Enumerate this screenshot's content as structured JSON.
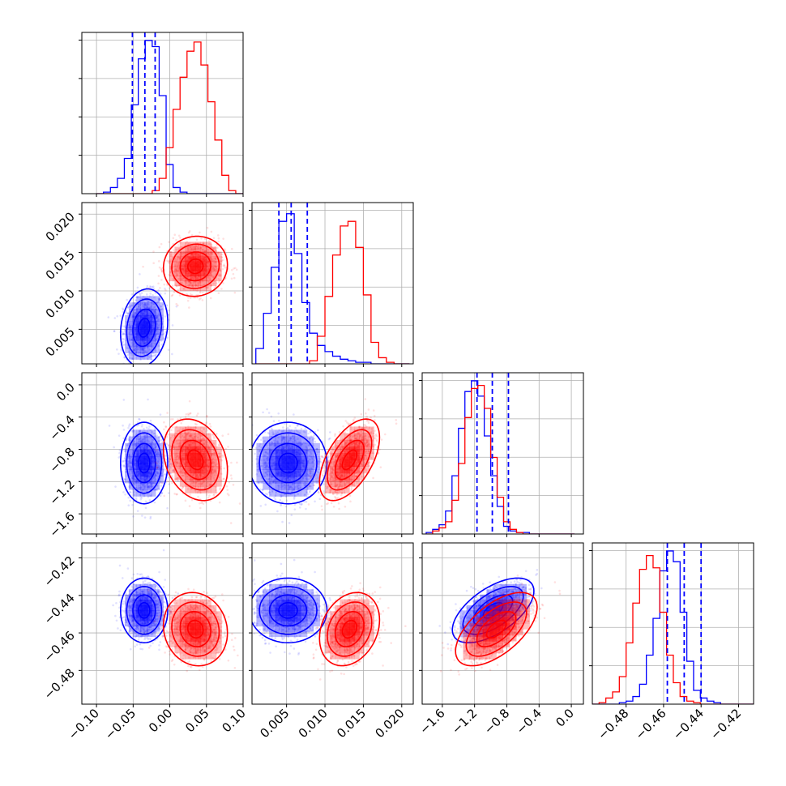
{
  "chart_data": {
    "type": "corner",
    "grid": true,
    "series": [
      {
        "color": "#0000ff"
      },
      {
        "color": "#ff0000"
      }
    ],
    "params": [
      {
        "range": [
          -0.12,
          0.1
        ],
        "ticks": [
          -0.1,
          -0.05,
          0.0,
          0.05,
          0.1
        ],
        "tick_labels": [
          "−0.10",
          "−0.05",
          "0.00",
          "0.05",
          "0.10"
        ]
      },
      {
        "range": [
          0.0005,
          0.0215
        ],
        "ticks": [
          0.005,
          0.01,
          0.015,
          0.02
        ],
        "tick_labels": [
          "0.005",
          "0.010",
          "0.015",
          "0.020"
        ]
      },
      {
        "range": [
          -1.85,
          0.15
        ],
        "ticks": [
          -1.6,
          -1.2,
          -0.8,
          -0.4,
          0.0
        ],
        "tick_labels": [
          "−1.6",
          "−1.2",
          "−0.8",
          "−0.4",
          "0.0"
        ]
      },
      {
        "range": [
          -0.498,
          -0.412
        ],
        "ticks": [
          -0.48,
          -0.46,
          -0.44,
          -0.42
        ],
        "tick_labels": [
          "−0.48",
          "−0.46",
          "−0.44",
          "−0.42"
        ]
      }
    ],
    "histograms": [
      {
        "param": 0,
        "series": [
          {
            "color": "#0000ff",
            "edges_from": -0.1,
            "bin_width": 0.0095,
            "counts": [
              0,
              0.01,
              0.04,
              0.1,
              0.23,
              0.58,
              0.88,
              1.0,
              0.96,
              0.64,
              0.19,
              0.04,
              0.01,
              0,
              0,
              0,
              0,
              0,
              0,
              0,
              0
            ]
          },
          {
            "color": "#ff0000",
            "edges_from": -0.1,
            "bin_width": 0.0095,
            "counts": [
              0,
              0,
              0,
              0,
              0,
              0,
              0,
              0,
              0.02,
              0.1,
              0.3,
              0.55,
              0.76,
              0.93,
              0.99,
              0.84,
              0.6,
              0.35,
              0.12,
              0.02,
              0
            ]
          }
        ],
        "quantiles": [
          -0.051,
          -0.034,
          -0.02
        ]
      },
      {
        "param": 1,
        "series": [
          {
            "color": "#0000ff",
            "edges_from": 0.001,
            "bin_width": 0.001,
            "counts": [
              0.1,
              0.33,
              0.63,
              0.93,
              0.98,
              0.72,
              0.4,
              0.2,
              0.12,
              0.08,
              0.05,
              0.03,
              0.02,
              0.01,
              0.01,
              0,
              0,
              0,
              0,
              0
            ]
          },
          {
            "color": "#ff0000",
            "edges_from": 0.001,
            "bin_width": 0.001,
            "counts": [
              0,
              0,
              0,
              0,
              0,
              0,
              0,
              0.02,
              0.18,
              0.44,
              0.71,
              0.9,
              0.93,
              0.76,
              0.45,
              0.14,
              0.04,
              0.01,
              0,
              0
            ]
          }
        ],
        "quantiles": [
          0.004,
          0.0056,
          0.0077
        ]
      },
      {
        "param": 2,
        "series": [
          {
            "color": "#0000ff",
            "edges_from": -1.8,
            "bin_width": 0.08,
            "counts": [
              0.01,
              0.03,
              0.06,
              0.15,
              0.38,
              0.69,
              0.93,
              1.0,
              0.9,
              0.64,
              0.38,
              0.18,
              0.05,
              0.02,
              0.01,
              0.01,
              0,
              0,
              0,
              0,
              0,
              0,
              0
            ]
          },
          {
            "color": "#ff0000",
            "edges_from": -1.8,
            "bin_width": 0.08,
            "counts": [
              0,
              0.02,
              0.04,
              0.08,
              0.22,
              0.46,
              0.76,
              0.95,
              0.97,
              0.82,
              0.5,
              0.24,
              0.08,
              0.03,
              0.01,
              0,
              0,
              0,
              0,
              0,
              0,
              0,
              0
            ]
          }
        ],
        "quantiles": [
          -1.17,
          -0.98,
          -0.78
        ]
      },
      {
        "param": 3,
        "series": [
          {
            "color": "#0000ff",
            "edges_from": -0.498,
            "bin_width": 0.0036,
            "counts": [
              0,
              0,
              0,
              0,
              0.01,
              0.02,
              0.05,
              0.13,
              0.32,
              0.56,
              0.87,
              1.0,
              0.93,
              0.6,
              0.28,
              0.09,
              0.04,
              0.02,
              0.01,
              0,
              0,
              0,
              0,
              0
            ]
          },
          {
            "color": "#ff0000",
            "edges_from": -0.498,
            "bin_width": 0.0036,
            "counts": [
              0,
              0.01,
              0.04,
              0.08,
              0.18,
              0.4,
              0.66,
              0.88,
              0.97,
              0.89,
              0.6,
              0.32,
              0.14,
              0.05,
              0.02,
              0.01,
              0,
              0,
              0,
              0,
              0,
              0,
              0,
              0
            ]
          }
        ],
        "quantiles": [
          -0.458,
          -0.449,
          -0.44
        ]
      }
    ],
    "pairs": [
      {
        "x_param": 0,
        "y_param": 1,
        "series": [
          {
            "color": "#0000ff",
            "mean": [
              -0.035,
              0.0052
            ],
            "sd": [
              0.014,
              0.0022
            ],
            "rho": 0.15
          },
          {
            "color": "#ff0000",
            "mean": [
              0.035,
              0.0132
            ],
            "sd": [
              0.019,
              0.0017
            ],
            "rho": 0.05
          }
        ]
      },
      {
        "x_param": 0,
        "y_param": 2,
        "series": [
          {
            "color": "#0000ff",
            "mean": [
              -0.035,
              -0.97
            ],
            "sd": [
              0.014,
              0.22
            ],
            "rho": 0.0
          },
          {
            "color": "#ff0000",
            "mean": [
              0.035,
              -0.93
            ],
            "sd": [
              0.019,
              0.22
            ],
            "rho": -0.25
          }
        ]
      },
      {
        "x_param": 1,
        "y_param": 2,
        "series": [
          {
            "color": "#0000ff",
            "mean": [
              0.0052,
              -0.97
            ],
            "sd": [
              0.0022,
              0.22
            ],
            "rho": 0.0
          },
          {
            "color": "#ff0000",
            "mean": [
              0.0132,
              -0.93
            ],
            "sd": [
              0.0017,
              0.22
            ],
            "rho": 0.55
          }
        ]
      },
      {
        "x_param": 0,
        "y_param": 3,
        "series": [
          {
            "color": "#0000ff",
            "mean": [
              -0.035,
              -0.448
            ],
            "sd": [
              0.014,
              0.0075
            ],
            "rho": 0.0
          },
          {
            "color": "#ff0000",
            "mean": [
              0.035,
              -0.458
            ],
            "sd": [
              0.019,
              0.0085
            ],
            "rho": -0.1
          }
        ]
      },
      {
        "x_param": 1,
        "y_param": 3,
        "series": [
          {
            "color": "#0000ff",
            "mean": [
              0.0052,
              -0.448
            ],
            "sd": [
              0.0022,
              0.0075
            ],
            "rho": 0.0
          },
          {
            "color": "#ff0000",
            "mean": [
              0.0132,
              -0.458
            ],
            "sd": [
              0.0017,
              0.0085
            ],
            "rho": 0.25
          }
        ]
      },
      {
        "x_param": 2,
        "y_param": 3,
        "series": [
          {
            "color": "#0000ff",
            "mean": [
              -0.97,
              -0.448
            ],
            "sd": [
              0.22,
              0.0075
            ],
            "rho": 0.6
          },
          {
            "color": "#ff0000",
            "mean": [
              -0.93,
              -0.458
            ],
            "sd": [
              0.22,
              0.0085
            ],
            "rho": 0.6
          }
        ]
      }
    ]
  }
}
